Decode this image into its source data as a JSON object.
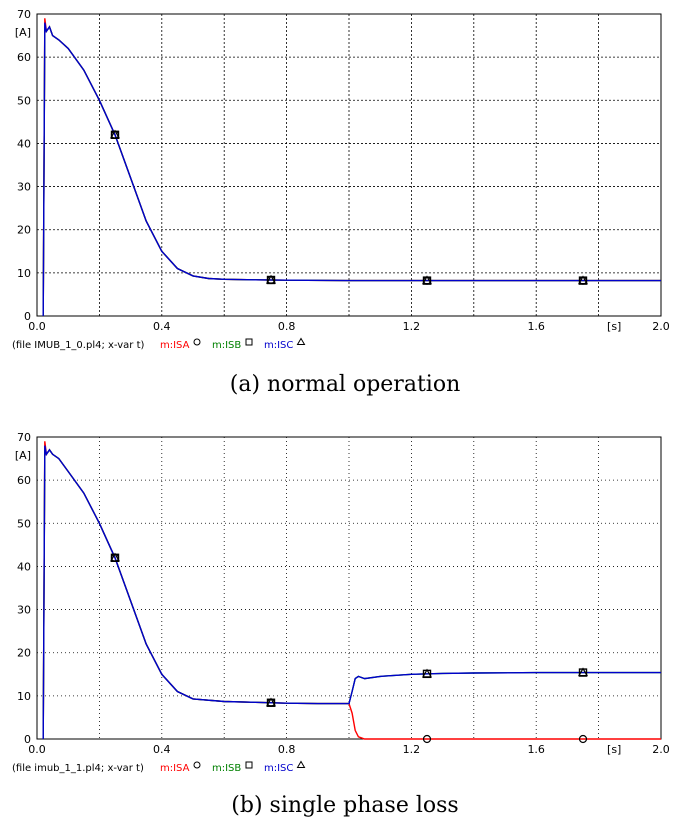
{
  "chart_data": [
    {
      "type": "line",
      "caption": "(a) normal operation",
      "unit_y": "[A]",
      "unit_x": "[s]",
      "xlim": [
        0,
        2.0
      ],
      "ylim": [
        0,
        70
      ],
      "x_ticks": [
        "0.0",
        "0.4",
        "0.8",
        "1.2",
        "1.6",
        "2.0"
      ],
      "y_ticks": [
        "0",
        "10",
        "20",
        "30",
        "40",
        "50",
        "60",
        "70"
      ],
      "grid": true,
      "legend_file": "(file IMUB_1_0.pl4; x-var t)",
      "series": [
        {
          "name": "m:ISA",
          "color": "#ff0000",
          "marker": "circle",
          "x": [
            0.02,
            0.025,
            0.03,
            0.04,
            0.05,
            0.07,
            0.1,
            0.15,
            0.2,
            0.25,
            0.3,
            0.35,
            0.4,
            0.45,
            0.5,
            0.55,
            0.6,
            0.7,
            0.8,
            1.0,
            1.2,
            1.4,
            1.6,
            1.8,
            2.0
          ],
          "y": [
            0,
            69,
            66,
            67,
            65,
            64,
            62,
            57,
            50,
            42,
            32,
            22,
            15,
            11,
            9.3,
            8.7,
            8.5,
            8.4,
            8.3,
            8.2,
            8.2,
            8.2,
            8.2,
            8.2,
            8.2
          ]
        },
        {
          "name": "m:ISB",
          "color": "#008000",
          "marker": "square",
          "x": [
            0.02,
            0.025,
            0.03,
            0.04,
            0.05,
            0.07,
            0.1,
            0.15,
            0.2,
            0.25,
            0.3,
            0.35,
            0.4,
            0.45,
            0.5,
            0.55,
            0.6,
            0.7,
            0.8,
            1.0,
            1.2,
            1.4,
            1.6,
            1.8,
            2.0
          ],
          "y": [
            0,
            67,
            66,
            67,
            65,
            64,
            62,
            57,
            50,
            42,
            32,
            22,
            15,
            11,
            9.3,
            8.7,
            8.5,
            8.4,
            8.3,
            8.2,
            8.2,
            8.2,
            8.2,
            8.2,
            8.2
          ]
        },
        {
          "name": "m:ISC",
          "color": "#0000cc",
          "marker": "triangle",
          "x": [
            0.02,
            0.025,
            0.03,
            0.04,
            0.05,
            0.07,
            0.1,
            0.15,
            0.2,
            0.25,
            0.3,
            0.35,
            0.4,
            0.45,
            0.5,
            0.55,
            0.6,
            0.7,
            0.8,
            1.0,
            1.2,
            1.4,
            1.6,
            1.8,
            2.0
          ],
          "y": [
            0,
            68,
            66,
            67,
            65,
            64,
            62,
            57,
            50,
            42,
            32,
            22,
            15,
            11,
            9.3,
            8.7,
            8.5,
            8.4,
            8.3,
            8.2,
            8.2,
            8.2,
            8.2,
            8.2,
            8.2
          ]
        }
      ],
      "markers_x": [
        0.25,
        0.75,
        1.25,
        1.75
      ]
    },
    {
      "type": "line",
      "caption": "(b) single phase loss",
      "unit_y": "[A]",
      "unit_x": "[s]",
      "xlim": [
        0,
        2.0
      ],
      "ylim": [
        0,
        70
      ],
      "x_ticks": [
        "0.0",
        "0.4",
        "0.8",
        "1.2",
        "1.6",
        "2.0"
      ],
      "y_ticks": [
        "0",
        "10",
        "20",
        "30",
        "40",
        "50",
        "60",
        "70"
      ],
      "grid": true,
      "legend_file": "(file imub_1_1.pl4; x-var t)",
      "series": [
        {
          "name": "m:ISA",
          "color": "#ff0000",
          "marker": "circle",
          "x": [
            0.02,
            0.025,
            0.03,
            0.04,
            0.05,
            0.07,
            0.1,
            0.15,
            0.2,
            0.25,
            0.3,
            0.35,
            0.4,
            0.45,
            0.5,
            0.6,
            0.7,
            0.8,
            0.9,
            1.0,
            1.01,
            1.02,
            1.03,
            1.05,
            1.2,
            1.4,
            1.6,
            1.8,
            2.0
          ],
          "y": [
            0,
            69,
            66,
            67,
            66,
            65,
            62,
            57,
            50,
            42,
            32,
            22,
            15,
            11,
            9.3,
            8.7,
            8.5,
            8.3,
            8.2,
            8.2,
            6,
            2,
            0.5,
            0,
            0,
            0,
            0,
            0,
            0
          ]
        },
        {
          "name": "m:ISB",
          "color": "#008000",
          "marker": "square",
          "x": [
            0.02,
            0.025,
            0.03,
            0.04,
            0.05,
            0.07,
            0.1,
            0.15,
            0.2,
            0.25,
            0.3,
            0.35,
            0.4,
            0.45,
            0.5,
            0.6,
            0.7,
            0.8,
            0.9,
            1.0,
            1.01,
            1.02,
            1.03,
            1.05,
            1.1,
            1.2,
            1.3,
            1.4,
            1.6,
            1.8,
            2.0
          ],
          "y": [
            0,
            67,
            66,
            67,
            66,
            65,
            62,
            57,
            50,
            42,
            32,
            22,
            15,
            11,
            9.3,
            8.7,
            8.5,
            8.3,
            8.2,
            8.2,
            11,
            14,
            14.5,
            14,
            14.5,
            15,
            15.2,
            15.3,
            15.4,
            15.4,
            15.4
          ]
        },
        {
          "name": "m:ISC",
          "color": "#0000cc",
          "marker": "triangle",
          "x": [
            0.02,
            0.025,
            0.03,
            0.04,
            0.05,
            0.07,
            0.1,
            0.15,
            0.2,
            0.25,
            0.3,
            0.35,
            0.4,
            0.45,
            0.5,
            0.6,
            0.7,
            0.8,
            0.9,
            1.0,
            1.01,
            1.02,
            1.03,
            1.05,
            1.1,
            1.2,
            1.3,
            1.4,
            1.6,
            1.8,
            2.0
          ],
          "y": [
            0,
            68,
            66,
            67,
            66,
            65,
            62,
            57,
            50,
            42,
            32,
            22,
            15,
            11,
            9.3,
            8.7,
            8.5,
            8.3,
            8.2,
            8.2,
            11,
            14,
            14.5,
            14,
            14.5,
            15,
            15.2,
            15.3,
            15.4,
            15.4,
            15.4
          ]
        }
      ],
      "markers_x": [
        0.25,
        0.75,
        1.25,
        1.75
      ]
    }
  ]
}
